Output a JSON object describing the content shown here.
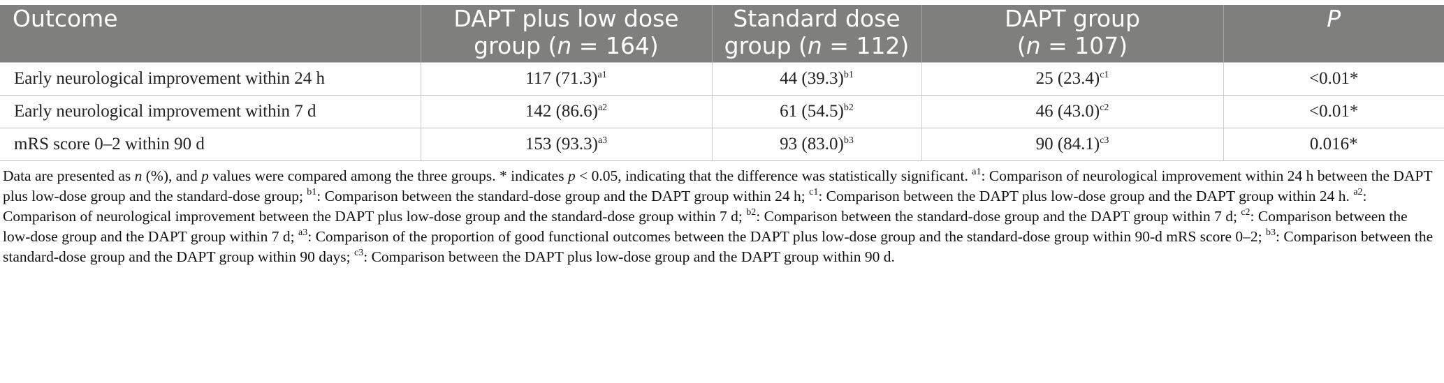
{
  "table": {
    "headers": [
      {
        "lines": [
          {
            "text": "Outcome",
            "ital": ""
          }
        ]
      },
      {
        "lines": [
          {
            "text": "DAPT plus low dose",
            "ital": ""
          },
          {
            "pre": "group (",
            "ital": "n",
            "post": " = 164)"
          }
        ]
      },
      {
        "lines": [
          {
            "text": "Standard dose",
            "ital": ""
          },
          {
            "pre": "group (",
            "ital": "n",
            "post": " = 112)"
          }
        ]
      },
      {
        "lines": [
          {
            "text": "DAPT group",
            "ital": ""
          },
          {
            "pre": "(",
            "ital": "n",
            "post": " = 107)"
          }
        ]
      },
      {
        "lines": [
          {
            "pre": "",
            "ital": "P",
            "post": ""
          }
        ]
      }
    ],
    "rows": [
      {
        "outcome": "Early neurological improvement within 24 h",
        "low_dose": {
          "value": "117 (71.3)",
          "sup": "a1"
        },
        "standard": {
          "value": "44 (39.3)",
          "sup": "b1"
        },
        "dapt": {
          "value": "25 (23.4)",
          "sup": "c1"
        },
        "p": "<0.01*"
      },
      {
        "outcome": "Early neurological improvement within 7 d",
        "low_dose": {
          "value": "142 (86.6)",
          "sup": "a2"
        },
        "standard": {
          "value": "61 (54.5)",
          "sup": "b2"
        },
        "dapt": {
          "value": "46 (43.0)",
          "sup": "c2"
        },
        "p": "<0.01*"
      },
      {
        "outcome": "mRS score 0–2 within 90 d",
        "low_dose": {
          "value": "153 (93.3)",
          "sup": "a3"
        },
        "standard": {
          "value": "93 (83.0)",
          "sup": "b3"
        },
        "dapt": {
          "value": "90 (84.1)",
          "sup": "c3"
        },
        "p": "0.016*"
      }
    ]
  },
  "footnote": [
    {
      "t": "Data are presented as "
    },
    {
      "t": "n",
      "i": true
    },
    {
      "t": " (%), and "
    },
    {
      "t": "p",
      "i": true
    },
    {
      "t": " values were compared among the three groups. * indicates "
    },
    {
      "t": "p",
      "i": true
    },
    {
      "t": " < 0.05, indicating that the difference was statistically significant. "
    },
    {
      "t": "a1",
      "s": true
    },
    {
      "t": ": Comparison of neurological improvement within 24 h between the DAPT plus low-dose group and the standard-dose group; "
    },
    {
      "t": "b1",
      "s": true
    },
    {
      "t": ": Comparison between the standard-dose group and the DAPT group within 24 h; "
    },
    {
      "t": "c1",
      "s": true
    },
    {
      "t": ": Comparison between the DAPT plus low-dose group and the DAPT group within 24 h. "
    },
    {
      "t": "a2",
      "s": true
    },
    {
      "t": ": Comparison of neurological improvement between the DAPT plus low-dose group and the standard-dose group within 7 d; "
    },
    {
      "t": "b2",
      "s": true
    },
    {
      "t": ": Comparison between the standard-dose group and the DAPT group within 7 d; "
    },
    {
      "t": "c2",
      "s": true
    },
    {
      "t": ": Comparison between the low-dose group and the DAPT group within 7 d; "
    },
    {
      "t": "a3",
      "s": true
    },
    {
      "t": ": Comparison of the proportion of good functional outcomes between the DAPT plus low-dose group and the standard-dose group within 90-d mRS score 0–2; "
    },
    {
      "t": "b3",
      "s": true
    },
    {
      "t": ": Comparison between the standard-dose group and the DAPT group within 90 days; "
    },
    {
      "t": "c3",
      "s": true
    },
    {
      "t": ": Comparison between the DAPT plus low-dose group and the DAPT group within 90 d."
    }
  ]
}
